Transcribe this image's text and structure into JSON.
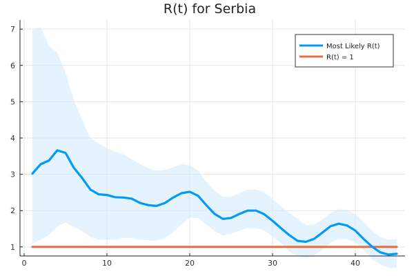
{
  "chart_data": {
    "type": "line",
    "title": "R(t) for Serbia",
    "xlabel": "",
    "ylabel": "",
    "xlim": [
      -0.5,
      46
    ],
    "ylim": [
      0.75,
      7.25
    ],
    "xticks": [
      0,
      10,
      20,
      30,
      40
    ],
    "yticks": [
      1,
      2,
      3,
      4,
      5,
      6,
      7
    ],
    "grid": true,
    "legend_position": "top-right",
    "colors": {
      "most_likely": "#009af9",
      "one": "#e26f46",
      "band": "#cfe9fd"
    },
    "x": [
      1,
      2,
      3,
      4,
      5,
      6,
      7,
      8,
      9,
      10,
      11,
      12,
      13,
      14,
      15,
      16,
      17,
      18,
      19,
      20,
      21,
      22,
      23,
      24,
      25,
      26,
      27,
      28,
      29,
      30,
      31,
      32,
      33,
      34,
      35,
      36,
      37,
      38,
      39,
      40,
      41,
      42,
      43,
      44,
      45
    ],
    "series": [
      {
        "name": "Most Likely R(t)",
        "values": [
          3.02,
          3.28,
          3.38,
          3.66,
          3.59,
          3.18,
          2.9,
          2.58,
          2.45,
          2.43,
          2.37,
          2.36,
          2.33,
          2.21,
          2.15,
          2.13,
          2.21,
          2.36,
          2.48,
          2.52,
          2.41,
          2.15,
          1.91,
          1.77,
          1.8,
          1.91,
          2.0,
          2.0,
          1.9,
          1.72,
          1.52,
          1.33,
          1.17,
          1.14,
          1.22,
          1.39,
          1.57,
          1.64,
          1.59,
          1.45,
          1.22,
          1.01,
          0.85,
          0.79,
          0.81
        ]
      },
      {
        "name": "R(t) = 1",
        "values": [
          1,
          1,
          1,
          1,
          1,
          1,
          1,
          1,
          1,
          1,
          1,
          1,
          1,
          1,
          1,
          1,
          1,
          1,
          1,
          1,
          1,
          1,
          1,
          1,
          1,
          1,
          1,
          1,
          1,
          1,
          1,
          1,
          1,
          1,
          1,
          1,
          1,
          1,
          1,
          1,
          1,
          1,
          1,
          1,
          1
        ]
      }
    ],
    "band": {
      "upper": [
        7.0,
        7.05,
        6.55,
        6.35,
        5.8,
        5.05,
        4.5,
        4.0,
        3.85,
        3.72,
        3.62,
        3.55,
        3.42,
        3.28,
        3.17,
        3.1,
        3.12,
        3.2,
        3.28,
        3.25,
        3.1,
        2.8,
        2.55,
        2.38,
        2.38,
        2.48,
        2.58,
        2.58,
        2.5,
        2.32,
        2.12,
        1.93,
        1.78,
        1.6,
        1.62,
        1.75,
        1.94,
        2.04,
        2.02,
        1.9,
        1.7,
        1.45,
        1.28,
        1.2,
        1.22
      ],
      "lower": [
        1.1,
        1.2,
        1.33,
        1.55,
        1.67,
        1.55,
        1.43,
        1.27,
        1.2,
        1.2,
        1.2,
        1.25,
        1.25,
        1.2,
        1.18,
        1.18,
        1.25,
        1.4,
        1.62,
        1.8,
        1.8,
        1.62,
        1.43,
        1.32,
        1.36,
        1.45,
        1.52,
        1.52,
        1.45,
        1.3,
        1.1,
        0.88,
        0.75,
        0.7,
        0.76,
        0.92,
        1.12,
        1.22,
        1.22,
        1.12,
        0.9,
        0.68,
        0.52,
        0.42,
        0.42
      ]
    }
  }
}
